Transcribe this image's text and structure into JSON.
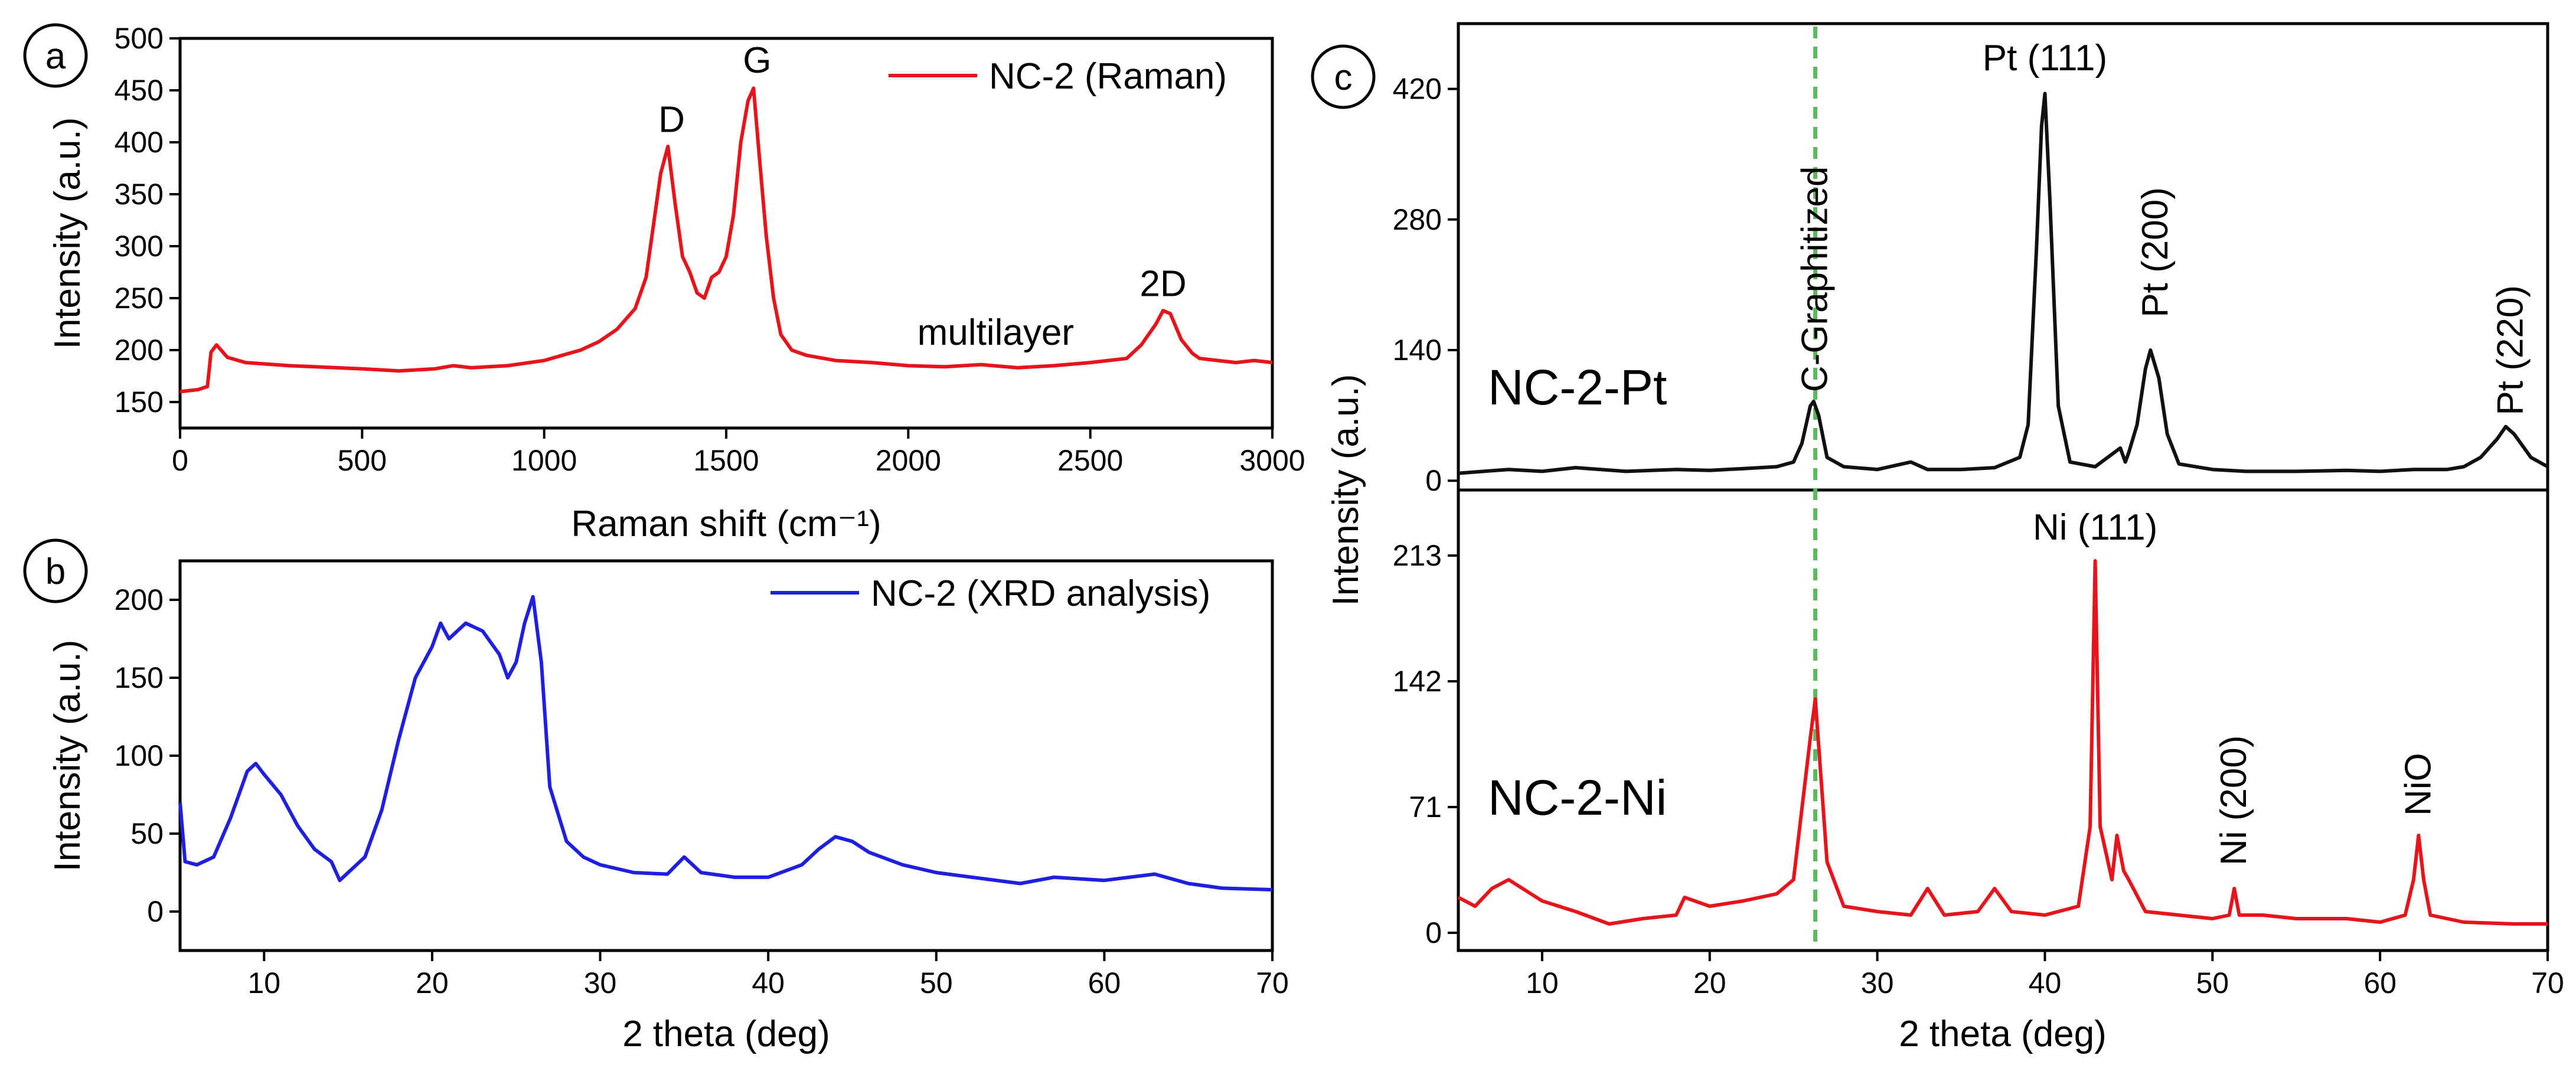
{
  "chart_data": [
    {
      "id": "a",
      "type": "line",
      "panel_label": "a",
      "xlabel": "Raman shift (cm⁻¹)",
      "ylabel": "Intensity (a.u.)",
      "xlim": [
        0,
        3000
      ],
      "ylim": [
        125,
        500
      ],
      "xticks": [
        0,
        500,
        1000,
        1500,
        2000,
        2500,
        3000
      ],
      "yticks": [
        150,
        200,
        250,
        300,
        350,
        400,
        450,
        500
      ],
      "legend": "NC-2 (Raman)",
      "legend_position": "top-right",
      "color": "#e8141c",
      "x": [
        0,
        50,
        75,
        85,
        100,
        130,
        180,
        300,
        500,
        600,
        700,
        750,
        800,
        900,
        1000,
        1050,
        1100,
        1150,
        1200,
        1250,
        1280,
        1300,
        1320,
        1340,
        1360,
        1380,
        1400,
        1420,
        1440,
        1460,
        1480,
        1500,
        1520,
        1540,
        1560,
        1575,
        1590,
        1610,
        1630,
        1650,
        1680,
        1720,
        1800,
        1900,
        2000,
        2100,
        2200,
        2300,
        2400,
        2500,
        2600,
        2640,
        2680,
        2700,
        2720,
        2750,
        2780,
        2800,
        2850,
        2900,
        2950,
        3000
      ],
      "y": [
        160,
        162,
        165,
        198,
        205,
        193,
        188,
        185,
        182,
        180,
        182,
        185,
        183,
        185,
        190,
        195,
        200,
        208,
        220,
        240,
        270,
        320,
        370,
        396,
        340,
        290,
        275,
        255,
        250,
        270,
        275,
        290,
        330,
        400,
        440,
        452,
        390,
        310,
        250,
        215,
        200,
        195,
        190,
        188,
        185,
        184,
        186,
        183,
        185,
        188,
        192,
        205,
        225,
        238,
        235,
        210,
        197,
        192,
        190,
        188,
        190,
        188
      ],
      "annotations": [
        {
          "text": "D",
          "x": 1350,
          "y": 410
        },
        {
          "text": "G",
          "x": 1585,
          "y": 467
        },
        {
          "text": "multilayer",
          "x": 2240,
          "y": 205
        },
        {
          "text": "2D",
          "x": 2700,
          "y": 252
        }
      ]
    },
    {
      "id": "b",
      "type": "line",
      "panel_label": "b",
      "xlabel": "2 theta (deg)",
      "ylabel": "Intensity (a.u.)",
      "xlim": [
        5,
        70
      ],
      "ylim": [
        -25,
        225
      ],
      "xticks": [
        10,
        20,
        30,
        40,
        50,
        60,
        70
      ],
      "yticks": [
        0,
        50,
        100,
        150,
        200
      ],
      "legend": "NC-2 (XRD analysis)",
      "legend_position": "top-right",
      "color": "#1f1fe0",
      "x": [
        5,
        5.3,
        6,
        7,
        8,
        9,
        9.5,
        10,
        11,
        12,
        13,
        14,
        14.5,
        15,
        16,
        17,
        18,
        19,
        20,
        20.5,
        21,
        22,
        23,
        24,
        24.5,
        25,
        25.5,
        26,
        26.5,
        27,
        28,
        29,
        30,
        32,
        34,
        35,
        36,
        38,
        40,
        42,
        43,
        44,
        45,
        46,
        48,
        50,
        55,
        57,
        60,
        63,
        65,
        67,
        70
      ],
      "y": [
        70,
        32,
        30,
        35,
        60,
        90,
        95,
        88,
        75,
        55,
        40,
        32,
        20,
        25,
        35,
        65,
        110,
        150,
        170,
        185,
        175,
        185,
        180,
        165,
        150,
        160,
        185,
        202,
        160,
        80,
        45,
        35,
        30,
        25,
        24,
        35,
        25,
        22,
        22,
        30,
        40,
        48,
        45,
        38,
        30,
        25,
        18,
        22,
        20,
        24,
        18,
        15,
        14
      ],
      "annotations": []
    },
    {
      "id": "c_top",
      "type": "line",
      "panel_label": "c",
      "sample_label": "NC-2-Pt",
      "xlim": [
        5,
        70
      ],
      "ylim": [
        -10,
        490
      ],
      "yticks": [
        0,
        140,
        280,
        420
      ],
      "color": "#111111",
      "x": [
        5,
        8,
        10,
        12,
        15,
        18,
        20,
        22,
        24,
        25,
        25.5,
        26,
        26.2,
        26.5,
        27,
        28,
        30,
        32,
        33,
        35,
        37,
        38.5,
        39,
        39.5,
        39.8,
        40,
        40.3,
        40.8,
        41.5,
        43,
        44.5,
        44.8,
        45,
        45.5,
        46,
        46.3,
        46.8,
        47.3,
        48,
        50,
        52,
        55,
        58,
        60,
        62,
        64,
        65,
        66,
        67,
        67.5,
        68,
        69,
        70
      ],
      "y": [
        8,
        12,
        10,
        14,
        10,
        12,
        11,
        13,
        15,
        20,
        40,
        80,
        85,
        70,
        25,
        15,
        12,
        20,
        12,
        12,
        14,
        25,
        60,
        250,
        380,
        415,
        300,
        80,
        20,
        15,
        35,
        20,
        30,
        60,
        120,
        140,
        110,
        50,
        18,
        12,
        10,
        10,
        11,
        10,
        12,
        12,
        15,
        25,
        45,
        58,
        50,
        25,
        15
      ],
      "annotations": [
        {
          "text": "C-Graphitized",
          "x": 26.3,
          "y": 95,
          "vertical": true
        },
        {
          "text": "Pt (111)",
          "x": 40,
          "y": 440
        },
        {
          "text": "Pt (200)",
          "x": 46.6,
          "y": 175,
          "vertical": true
        },
        {
          "text": "Pt (220)",
          "x": 67.8,
          "y": 70,
          "vertical": true
        }
      ]
    },
    {
      "id": "c_bottom",
      "type": "line",
      "sample_label": "NC-2-Ni",
      "xlabel": "2 theta (deg)",
      "ylabel": "Intensity (a.u.)",
      "xlim": [
        5,
        70
      ],
      "ylim": [
        -10,
        250
      ],
      "xticks": [
        10,
        20,
        30,
        40,
        50,
        60,
        70
      ],
      "yticks": [
        0,
        71,
        142,
        213
      ],
      "color": "#e8141c",
      "x": [
        5,
        6,
        7,
        8,
        10,
        12,
        14,
        16,
        18,
        18.5,
        20,
        22,
        24,
        25,
        25.5,
        26,
        26.3,
        26.7,
        27,
        28,
        30,
        32,
        33,
        34,
        36,
        37,
        38,
        40,
        42,
        42.7,
        43,
        43.3,
        44,
        44.3,
        44.7,
        45,
        46,
        48,
        50,
        51,
        51.3,
        51.6,
        53,
        55,
        58,
        60,
        61.5,
        62,
        62.3,
        62.6,
        63,
        65,
        68,
        70
      ],
      "y": [
        20,
        15,
        25,
        30,
        18,
        12,
        5,
        8,
        10,
        20,
        15,
        18,
        22,
        30,
        70,
        110,
        132,
        80,
        40,
        15,
        12,
        10,
        25,
        10,
        12,
        25,
        12,
        10,
        15,
        60,
        210,
        60,
        30,
        55,
        35,
        30,
        12,
        10,
        8,
        10,
        25,
        10,
        10,
        8,
        8,
        6,
        10,
        30,
        55,
        30,
        10,
        6,
        5,
        5
      ],
      "annotations": [
        {
          "text": "Ni (111)",
          "x": 43,
          "y": 222
        },
        {
          "text": "Ni (200)",
          "x": 51.3,
          "y": 38,
          "vertical": true
        },
        {
          "text": "NiO",
          "x": 62.3,
          "y": 66,
          "vertical": true
        }
      ],
      "reference_line": {
        "x": 26.3,
        "style": "dashed",
        "color": "#5cb85c"
      }
    }
  ]
}
